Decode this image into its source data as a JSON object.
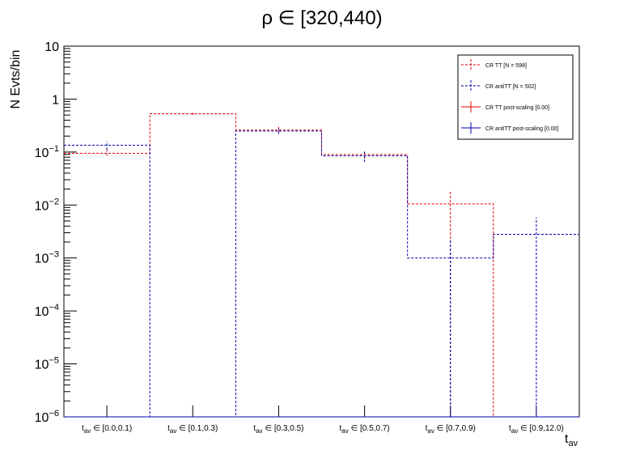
{
  "chart_data": {
    "type": "histogram",
    "title": "ρ ∈ [320,440)",
    "ylabel": "N Evts/bin",
    "xlabel": "t_av",
    "yscale": "log",
    "ylim": [
      1e-06,
      10
    ],
    "categories": [
      "t_av ∈ [0.0,0.1)",
      "t_av ∈ [0.1,0.3)",
      "t_av ∈ [0.3,0.5)",
      "t_av ∈ [0.5,0.7)",
      "t_av ∈ [0.7,0.9)",
      "t_av ∈ [0.9,12.0)"
    ],
    "y_ticks": [
      {
        "value": 1e-06,
        "label": "10^-6"
      },
      {
        "value": 1e-05,
        "label": "10^-5"
      },
      {
        "value": 0.0001,
        "label": "10^-4"
      },
      {
        "value": 0.001,
        "label": "10^-3"
      },
      {
        "value": 0.01,
        "label": "10^-2"
      },
      {
        "value": 0.1,
        "label": "10^-1"
      },
      {
        "value": 1,
        "label": "1"
      },
      {
        "value": 10,
        "label": "10"
      }
    ],
    "series": [
      {
        "name": "CR TT [N = 598]",
        "color": "#e8000b",
        "style": "dashed",
        "values": [
          0.095,
          0.53,
          0.26,
          0.09,
          0.0105,
          0.0
        ],
        "err_low": [
          0.085,
          0.5,
          0.23,
          0.075,
          1e-06,
          0
        ],
        "err_high": [
          0.11,
          0.57,
          0.3,
          0.105,
          0.019,
          0
        ]
      },
      {
        "name": "CR antiTT [N = 502]",
        "color": "#0000aa",
        "style": "dashed",
        "values": [
          0.135,
          0.0,
          0.25,
          0.085,
          0.001,
          0.0028
        ],
        "err_low": [
          0.11,
          0,
          0.22,
          0.065,
          1e-06,
          1e-06
        ],
        "err_high": [
          0.16,
          0,
          0.28,
          0.105,
          0.0023,
          0.0058
        ]
      },
      {
        "name": "CR TT post-scaling [0.00]",
        "color": "#e8000b",
        "style": "solid",
        "values": [
          0,
          0,
          0,
          0,
          0,
          0
        ]
      },
      {
        "name": "CR antiTT post-scaling [0.00]",
        "color": "#0000aa",
        "style": "solid",
        "values": [
          0,
          0,
          0,
          0,
          0,
          0
        ]
      }
    ],
    "legend": "top-right",
    "grid": false
  }
}
